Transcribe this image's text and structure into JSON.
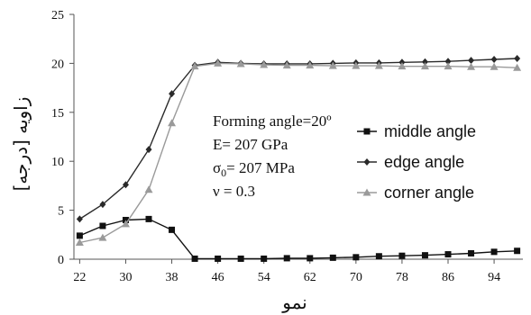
{
  "chart_data": {
    "type": "line",
    "title": "",
    "xlabel": "نمو",
    "ylabel": "زاویه [درجه]",
    "xlim": [
      21,
      99
    ],
    "ylim": [
      0,
      25
    ],
    "xticks": [
      22,
      30,
      38,
      46,
      54,
      62,
      70,
      78,
      86,
      94
    ],
    "yticks": [
      0,
      5,
      10,
      15,
      20,
      25
    ],
    "grid": false,
    "legend_position": "right",
    "annotation": {
      "line1": "Forming angle=20º",
      "line2": "E= 207 GPa",
      "line3_symbol": "σ",
      "line3_sub": "0",
      "line3_rest": "= 207 MPa",
      "line4": "ν = 0.3"
    },
    "series": [
      {
        "name": "middle angle",
        "marker": "square",
        "color": "#111111",
        "x": [
          22,
          26,
          30,
          34,
          38,
          42,
          46,
          50,
          54,
          58,
          62,
          66,
          70,
          74,
          78,
          82,
          86,
          90,
          94,
          98
        ],
        "y": [
          2.4,
          3.4,
          4.0,
          4.1,
          3.0,
          0.05,
          0.05,
          0.05,
          0.05,
          0.1,
          0.1,
          0.15,
          0.2,
          0.3,
          0.35,
          0.4,
          0.5,
          0.6,
          0.75,
          0.85
        ]
      },
      {
        "name": "edge angle",
        "marker": "diamond",
        "color": "#2a2a2a",
        "x": [
          22,
          26,
          30,
          34,
          38,
          42,
          46,
          50,
          54,
          58,
          62,
          66,
          70,
          74,
          78,
          82,
          86,
          90,
          94,
          98
        ],
        "y": [
          4.1,
          5.6,
          7.6,
          11.2,
          16.9,
          19.8,
          20.1,
          20.0,
          19.95,
          19.95,
          19.95,
          20.0,
          20.05,
          20.05,
          20.1,
          20.15,
          20.2,
          20.3,
          20.4,
          20.5
        ]
      },
      {
        "name": "corner angle",
        "marker": "triangle",
        "color": "#9a9a9a",
        "x": [
          22,
          26,
          30,
          34,
          38,
          42,
          46,
          50,
          54,
          58,
          62,
          66,
          70,
          74,
          78,
          82,
          86,
          90,
          94,
          98
        ],
        "y": [
          1.7,
          2.2,
          3.6,
          7.1,
          13.9,
          19.7,
          20.0,
          19.95,
          19.85,
          19.8,
          19.8,
          19.75,
          19.75,
          19.75,
          19.7,
          19.7,
          19.7,
          19.65,
          19.65,
          19.55
        ]
      }
    ]
  }
}
